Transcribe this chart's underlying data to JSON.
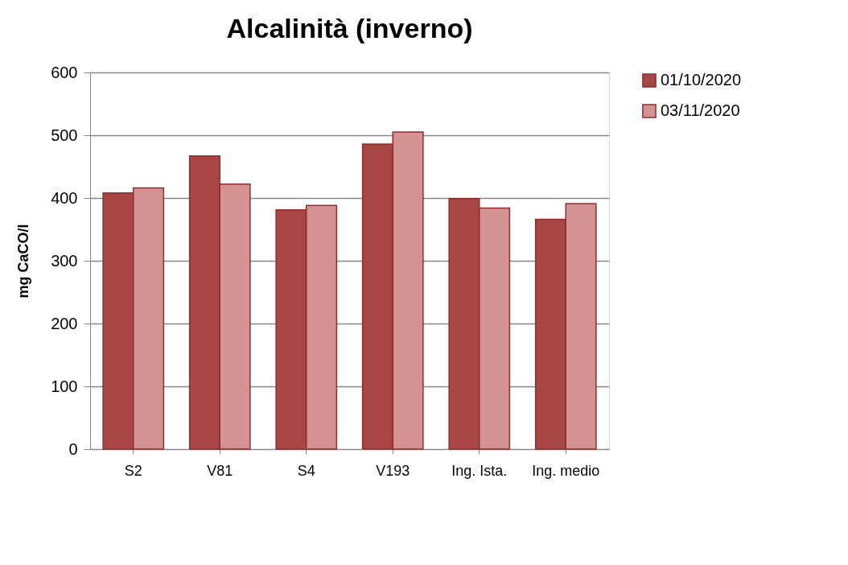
{
  "chart_data": {
    "type": "bar",
    "title": "Alcalinità (inverno)",
    "ylabel": "mg CaCO/l",
    "categories": [
      "S2",
      "V81",
      "S4",
      "V193",
      "Ing. Ista.",
      "Ing. medio"
    ],
    "series": [
      {
        "name": "01/10/2020",
        "color": "#a84545",
        "values": [
          408,
          467,
          381,
          486,
          399,
          366
        ]
      },
      {
        "name": "03/11/2020",
        "color": "#d49292",
        "values": [
          416,
          422,
          388,
          505,
          384,
          391
        ]
      }
    ],
    "ylim": [
      0,
      600
    ],
    "yticks": [
      0,
      100,
      200,
      300,
      400,
      500,
      600
    ],
    "grid": "y",
    "legend": "right"
  }
}
